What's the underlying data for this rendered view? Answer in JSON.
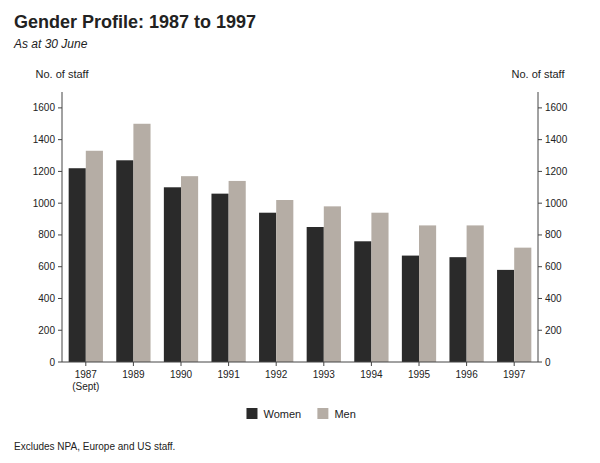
{
  "chart_data": {
    "type": "bar",
    "title": "Gender Profile: 1987 to 1997",
    "subtitle": "As at 30 June",
    "footnote": "Excludes NPA, Europe and US staff.",
    "ylabel": "No. of staff",
    "y2label": "No. of staff",
    "categories": [
      "1987\n(Sept)",
      "1989",
      "1990",
      "1991",
      "1992",
      "1993",
      "1994",
      "1995",
      "1996",
      "1997"
    ],
    "series": [
      {
        "name": "Women",
        "color": "#2a2a2a",
        "values": [
          1220,
          1270,
          1100,
          1060,
          940,
          850,
          760,
          670,
          660,
          580
        ]
      },
      {
        "name": "Men",
        "color": "#b5ada5",
        "values": [
          1330,
          1500,
          1170,
          1140,
          1020,
          980,
          940,
          860,
          860,
          720
        ]
      }
    ],
    "ylim": [
      0,
      1700
    ],
    "yticks": [
      0,
      200,
      400,
      600,
      800,
      1000,
      1200,
      1400,
      1600
    ],
    "y2lim": [
      0,
      1700
    ],
    "y2ticks": [
      0,
      200,
      400,
      600,
      800,
      1000,
      1200,
      1400,
      1600
    ],
    "grid": false,
    "legend": "bottom"
  }
}
